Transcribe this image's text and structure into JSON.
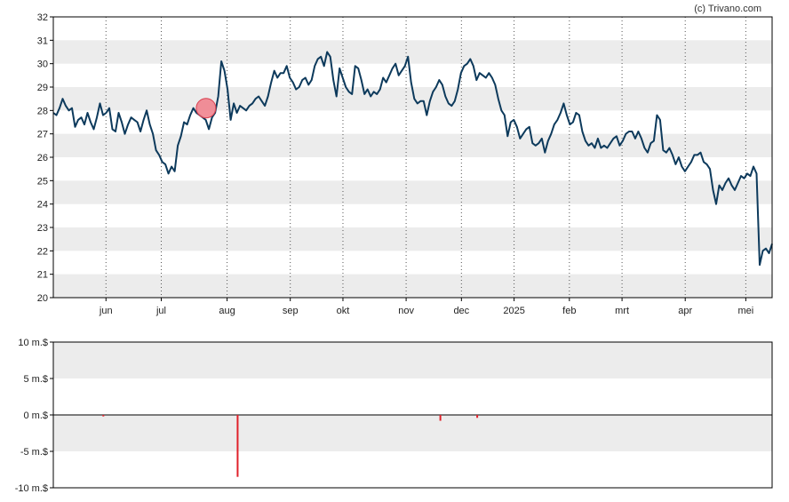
{
  "credit": "(c) Trivano.com",
  "colors": {
    "price_line": "#0d3a5c",
    "band": "#ececec",
    "marker_fill": "#f07c88",
    "marker_stroke": "#d9404f",
    "volume_bar": "#e0202a",
    "axis": "#000000",
    "vgrid": "#555555"
  },
  "chart_data": [
    {
      "type": "line",
      "title": "",
      "ylim": [
        20,
        32
      ],
      "yticks": [
        20,
        21,
        22,
        23,
        24,
        25,
        26,
        27,
        28,
        29,
        30,
        31,
        32
      ],
      "grid": "alternating horizontal bands, dotted vertical month lines",
      "x_tick_labels": [
        "jun",
        "jul",
        "aug",
        "sep",
        "okt",
        "nov",
        "dec",
        "2025",
        "feb",
        "mrt",
        "apr",
        "mei"
      ],
      "x_tick_positions": [
        20,
        41,
        66,
        90,
        110,
        134,
        155,
        175,
        196,
        216,
        240,
        263
      ],
      "x_range": [
        0,
        273
      ],
      "values": [
        27.9,
        27.8,
        28.1,
        28.5,
        28.2,
        28.0,
        28.1,
        27.3,
        27.6,
        27.7,
        27.4,
        27.9,
        27.5,
        27.2,
        27.7,
        28.3,
        27.8,
        27.9,
        28.1,
        27.2,
        27.1,
        27.9,
        27.5,
        27.0,
        27.4,
        27.7,
        27.6,
        27.5,
        27.1,
        27.6,
        28.0,
        27.4,
        27.0,
        26.3,
        26.1,
        25.8,
        25.7,
        25.3,
        25.6,
        25.4,
        26.5,
        26.9,
        27.5,
        27.4,
        27.8,
        28.1,
        27.9,
        27.8,
        27.7,
        27.6,
        27.2,
        27.7,
        27.9,
        28.6,
        30.1,
        29.7,
        28.9,
        27.6,
        28.3,
        27.9,
        28.2,
        28.1,
        28.0,
        28.2,
        28.3,
        28.5,
        28.6,
        28.4,
        28.2,
        28.6,
        29.2,
        29.7,
        29.4,
        29.6,
        29.6,
        29.9,
        29.4,
        29.2,
        28.9,
        29.0,
        29.3,
        29.4,
        29.1,
        29.3,
        29.9,
        30.2,
        30.3,
        29.9,
        30.5,
        30.3,
        29.3,
        28.6,
        29.8,
        29.4,
        29.0,
        28.8,
        28.7,
        29.9,
        29.8,
        29.3,
        28.7,
        28.9,
        28.6,
        28.8,
        28.7,
        28.9,
        29.4,
        29.2,
        29.5,
        29.8,
        30.0,
        29.5,
        29.7,
        29.9,
        30.3,
        29.2,
        28.5,
        28.3,
        28.4,
        28.4,
        27.8,
        28.4,
        28.8,
        29.0,
        29.3,
        29.1,
        28.6,
        28.3,
        28.2,
        28.4,
        28.9,
        29.6,
        29.9,
        30.0,
        30.2,
        29.9,
        29.3,
        29.6,
        29.5,
        29.4,
        29.6,
        29.4,
        29.1,
        28.5,
        28.0,
        27.8,
        26.9,
        27.5,
        27.6,
        27.3,
        26.8,
        27.0,
        27.2,
        27.3,
        26.6,
        26.5,
        26.6,
        26.8,
        26.2,
        26.7,
        27.0,
        27.4,
        27.6,
        27.9,
        28.3,
        27.8,
        27.4,
        27.5,
        27.9,
        27.8,
        27.1,
        26.7,
        26.5,
        26.6,
        26.4,
        26.8,
        26.4,
        26.5,
        26.4,
        26.6,
        26.8,
        26.9,
        26.5,
        26.7,
        27.0,
        27.1,
        27.1,
        26.8,
        27.1,
        26.8,
        26.4,
        26.2,
        26.6,
        26.7,
        27.8,
        27.6,
        26.3,
        26.2,
        26.4,
        26.1,
        25.7,
        26.0,
        25.6,
        25.4,
        25.6,
        25.8,
        26.1,
        26.1,
        26.2,
        25.8,
        25.7,
        25.5,
        24.6,
        24.0,
        24.8,
        24.6,
        24.9,
        25.1,
        24.8,
        24.6,
        24.9,
        25.2,
        25.1,
        25.3,
        25.2,
        25.6,
        25.3,
        21.4,
        22.0,
        22.1,
        21.9,
        22.3
      ],
      "marker": {
        "x": 58,
        "y": 28.1
      }
    },
    {
      "type": "bar",
      "title": "",
      "ylim": [
        -10,
        10
      ],
      "ytick_labels": [
        "10 m.$",
        "5 m.$",
        "0 m.$",
        "-5 m.$",
        "-10 m.$"
      ],
      "yticks": [
        10,
        5,
        0,
        -5,
        -10
      ],
      "x_range": [
        0,
        273
      ],
      "bars": [
        {
          "x": 19,
          "value": -0.2
        },
        {
          "x": 70,
          "value": -8.5
        },
        {
          "x": 147,
          "value": -0.8
        },
        {
          "x": 161,
          "value": -0.4
        }
      ]
    }
  ]
}
